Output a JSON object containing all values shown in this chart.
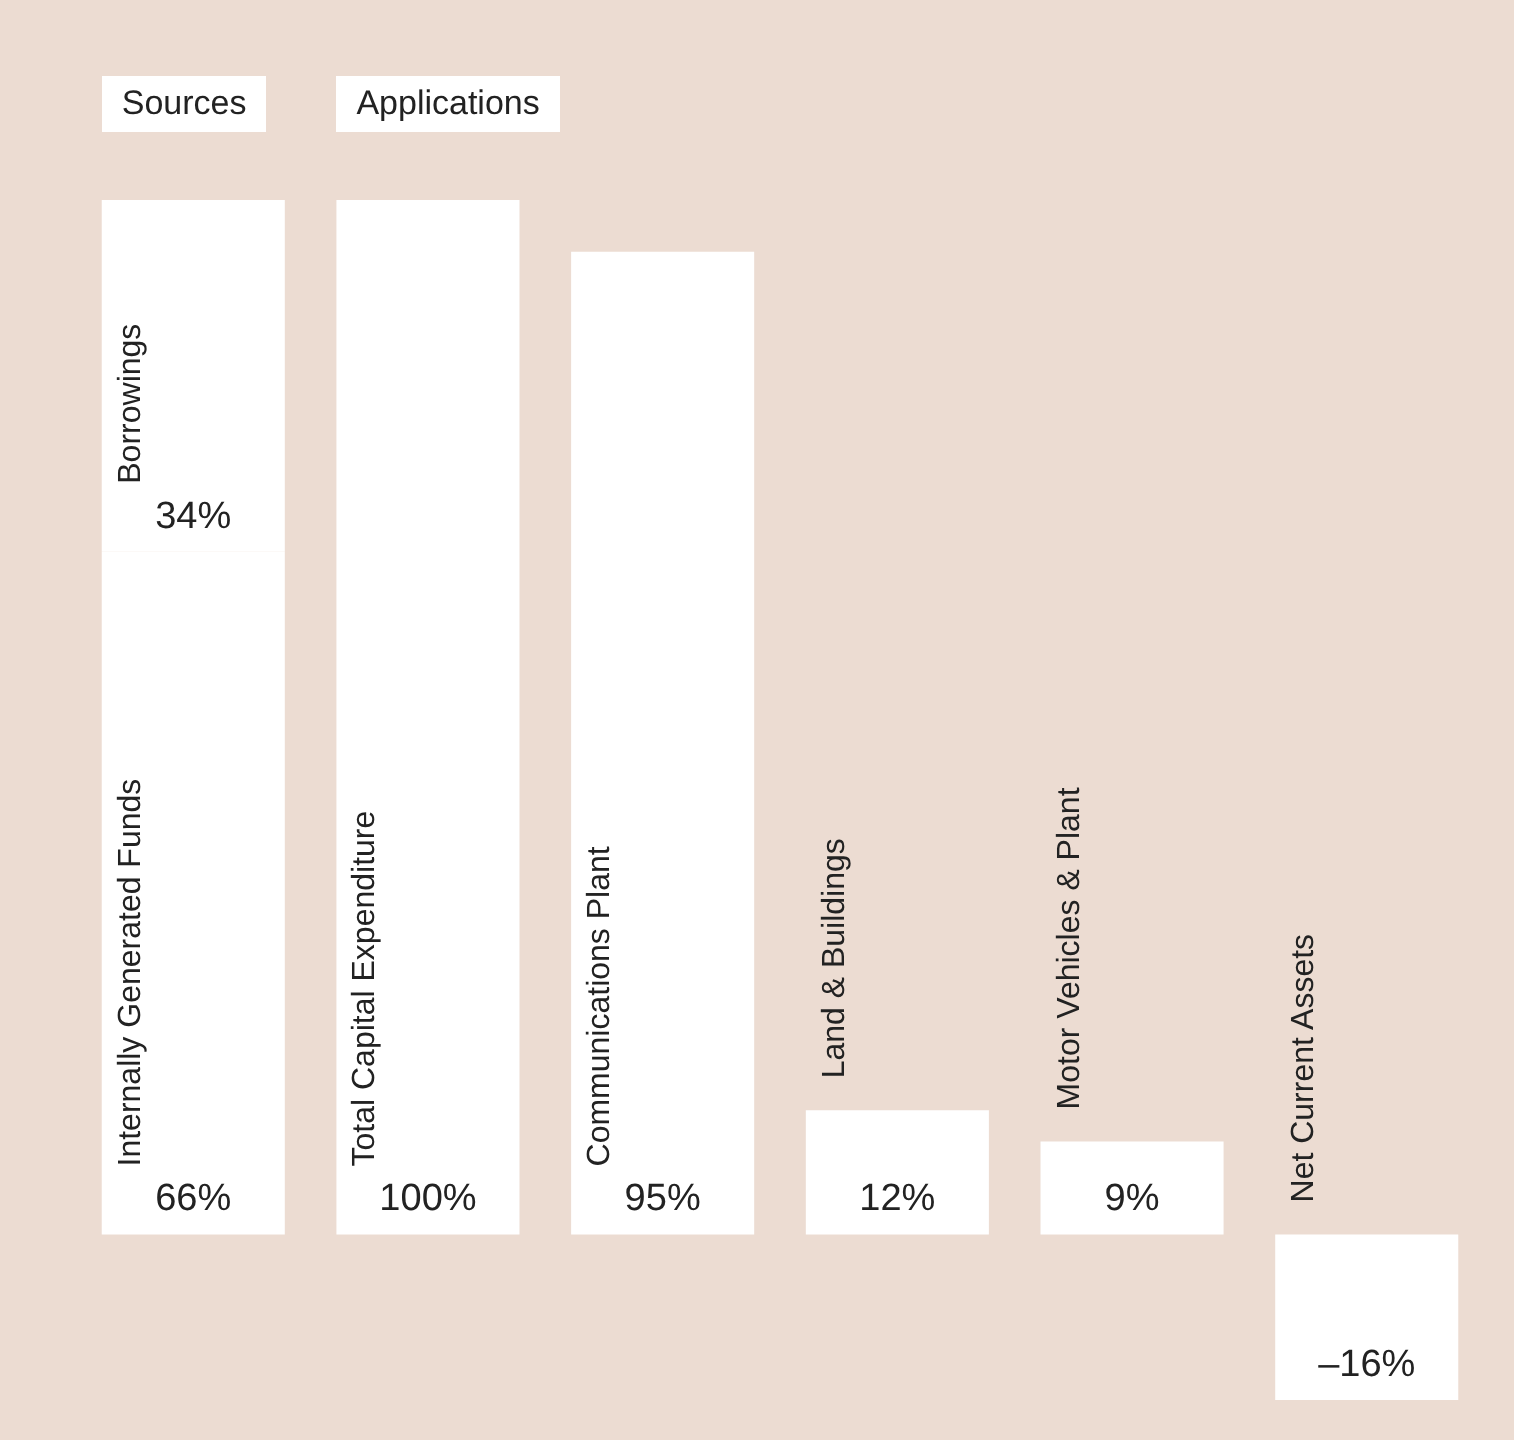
{
  "chart_data": {
    "type": "bar",
    "stacked": true,
    "annotations": [
      "Sources",
      "Applications"
    ],
    "categories": [
      null,
      "Total Capital Expenditure",
      "Communications Plant",
      "Land & Buildings",
      "Motor Vehicles & Plant",
      "Net Current Assets"
    ],
    "series": [
      {
        "name": "Internally Generated Funds",
        "color": "#ffffff",
        "values": [
          66,
          null,
          null,
          null,
          null,
          null
        ],
        "value_labels": [
          "66%",
          null,
          null,
          null,
          null,
          null
        ]
      },
      {
        "name": "Borrowings",
        "color": "#ffffff",
        "values": [
          34,
          null,
          null,
          null,
          null,
          null
        ],
        "value_labels": [
          "34%",
          null,
          null,
          null,
          null,
          null
        ]
      },
      {
        "color": "#ffffff",
        "values": [
          null,
          100,
          95,
          12,
          9,
          -16
        ],
        "value_labels": [
          null,
          "100%",
          "95%",
          "12%",
          "9%",
          "–16%"
        ]
      }
    ]
  }
}
